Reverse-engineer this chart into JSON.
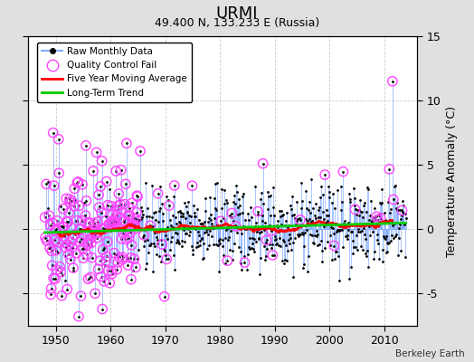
{
  "title": "URMI",
  "subtitle": "49.400 N, 133.233 E (Russia)",
  "credit": "Berkeley Earth",
  "xlim": [
    1945,
    2016
  ],
  "ylim": [
    -7.5,
    13
  ],
  "yticks": [
    -5,
    0,
    5,
    10,
    15
  ],
  "xticks": [
    1950,
    1960,
    1970,
    1980,
    1990,
    2000,
    2010
  ],
  "ylabel_right": "Temperature Anomaly (°C)",
  "dot_color": "#000000",
  "stem_color": "#6699ff",
  "qc_color": "#ff44ff",
  "moving_avg_color": "#ff0000",
  "trend_color": "#00cc00",
  "fig_bg_color": "#e0e0e0",
  "ax_bg_color": "#ffffff",
  "grid_color": "#cccccc",
  "seed": 42,
  "year_start": 1948,
  "year_end": 2013
}
